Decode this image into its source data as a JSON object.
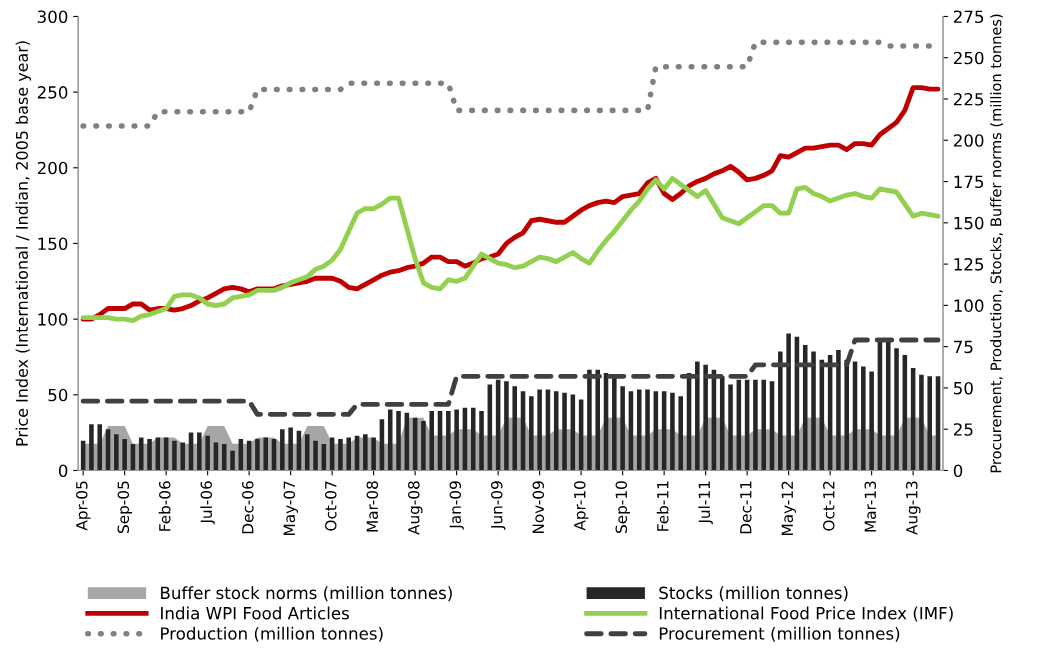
{
  "chart_data": {
    "type": "bar",
    "ylabel": "Price Index (International / Indian, 2005 base year)",
    "y2label": "Procurement, Production, Stocks, Buffer norms (million tonnes)",
    "categories": [
      "Apr-05",
      null,
      null,
      null,
      null,
      "Sep-05",
      null,
      null,
      null,
      null,
      "Feb-06",
      null,
      null,
      null,
      null,
      "Jul-06",
      null,
      null,
      null,
      null,
      "Dec-06",
      null,
      null,
      null,
      null,
      "May-07",
      null,
      null,
      null,
      null,
      "Oct-07",
      null,
      null,
      null,
      null,
      "Mar-08",
      null,
      null,
      null,
      null,
      "Aug-08",
      null,
      null,
      null,
      null,
      "Jan-09",
      null,
      null,
      null,
      null,
      "Jun-09",
      null,
      null,
      null,
      null,
      "Nov-09",
      null,
      null,
      null,
      null,
      "Apr-10",
      null,
      null,
      null,
      null,
      "Sep-10",
      null,
      null,
      null,
      null,
      "Feb-11",
      null,
      null,
      null,
      null,
      "Jul-11",
      null,
      null,
      null,
      null,
      "Dec-11",
      null,
      null,
      null,
      null,
      "May-12",
      null,
      null,
      null,
      null,
      "Oct-12",
      null,
      null,
      null,
      null,
      "Mar-13",
      null,
      null,
      null,
      null,
      "Aug-13",
      null,
      null,
      null
    ],
    "ylim": [
      0,
      300
    ],
    "yticks": [
      0,
      50,
      100,
      150,
      200,
      250,
      300
    ],
    "y2lim": [
      0,
      275
    ],
    "y2ticks": [
      0,
      25,
      50,
      75,
      100,
      125,
      150,
      175,
      200,
      225,
      250,
      275
    ],
    "legend": "bottom",
    "grid": false,
    "series": [
      {
        "name": "Buffer stock norms (million tonnes)",
        "type": "area",
        "axis": "y2",
        "color": "#a6a6a6",
        "values": [
          16.2,
          16.2,
          16.2,
          26.9,
          26.9,
          26.9,
          16.2,
          16.2,
          16.2,
          20,
          20,
          20,
          16.2,
          16.2,
          16.2,
          26.9,
          26.9,
          26.9,
          16.2,
          16.2,
          16.2,
          20,
          20,
          20,
          16.2,
          16.2,
          16.2,
          26.9,
          26.9,
          26.9,
          16.2,
          16.2,
          16.2,
          20,
          20,
          20,
          16.2,
          16.2,
          16.2,
          31.9,
          31.9,
          31.9,
          21.2,
          21.2,
          21.2,
          25,
          25,
          25,
          21.2,
          21.2,
          21.2,
          31.9,
          31.9,
          31.9,
          21.2,
          21.2,
          21.2,
          25,
          25,
          25,
          21.2,
          21.2,
          21.2,
          31.9,
          31.9,
          31.9,
          21.2,
          21.2,
          21.2,
          25,
          25,
          25,
          21.2,
          21.2,
          21.2,
          31.9,
          31.9,
          31.9,
          21.2,
          21.2,
          21.2,
          25,
          25,
          25,
          21.2,
          21.2,
          21.2,
          31.9,
          31.9,
          31.9,
          21.2,
          21.2,
          21.2,
          25,
          25,
          25,
          21.2,
          21.2,
          21.2,
          31.9,
          31.9,
          31.9,
          21.2,
          21.2
        ]
      },
      {
        "name": "Stocks (million tonnes)",
        "axis": "y2",
        "color": "#262626",
        "values": [
          18,
          28,
          28,
          25,
          22,
          19,
          16,
          20,
          19,
          20,
          20,
          18,
          17,
          23,
          23,
          21,
          17,
          16,
          12,
          19,
          18,
          19,
          20,
          19,
          25,
          26,
          24,
          22,
          18,
          16,
          20,
          19,
          20,
          21,
          22,
          20,
          31,
          37,
          36,
          35,
          32,
          30,
          36,
          36,
          36,
          37,
          38,
          38,
          36,
          52,
          55,
          54,
          51,
          48,
          45,
          49,
          49,
          48,
          47,
          46,
          43,
          61,
          61,
          59,
          56,
          51,
          48,
          49,
          49,
          48,
          48,
          47,
          45,
          59,
          66,
          64,
          61,
          57,
          52,
          55,
          55,
          55,
          55,
          54,
          72,
          83,
          81,
          76,
          72,
          67,
          70,
          73,
          67,
          66,
          63,
          60,
          78,
          78,
          74,
          70,
          62,
          58,
          57,
          57
        ]
      },
      {
        "name": "India WPI Food Articles",
        "type": "line",
        "axis": "y",
        "color": "#c00000",
        "line_style": "solid",
        "values": [
          100,
          100,
          103,
          107,
          107,
          107,
          110,
          110,
          106,
          107,
          107,
          106,
          107,
          109,
          112,
          114,
          117,
          120,
          121,
          120,
          118,
          120,
          120,
          120,
          122,
          123,
          124,
          125,
          127,
          127,
          127,
          125,
          121,
          120,
          123,
          126,
          129,
          131,
          132,
          134,
          135,
          137,
          141,
          141,
          138,
          138,
          135,
          137,
          140,
          141,
          143,
          150,
          154,
          157,
          165,
          166,
          165,
          164,
          164,
          168,
          172,
          175,
          177,
          178,
          177,
          181,
          182,
          183,
          190,
          193,
          183,
          179,
          183,
          188,
          191,
          193,
          196,
          198,
          201,
          197,
          192,
          193,
          195,
          198,
          208,
          207,
          210,
          213,
          213,
          214,
          215,
          215,
          212,
          216,
          216,
          215,
          222,
          226,
          230,
          238,
          253,
          253,
          252,
          252
        ]
      },
      {
        "name": "International Food Price Index (IMF)",
        "type": "line",
        "axis": "y",
        "color": "#92d050",
        "line_style": "solid",
        "values": [
          101,
          101,
          101,
          101,
          100,
          100,
          99,
          102,
          103,
          105,
          107,
          115,
          116,
          116,
          114,
          110,
          109,
          110,
          114,
          115,
          116,
          119,
          119,
          119,
          121,
          124,
          126,
          128,
          133,
          135,
          139,
          146,
          158,
          170,
          173,
          173,
          176,
          180,
          180,
          160,
          140,
          124,
          121,
          120,
          126,
          125,
          127,
          135,
          143,
          140,
          137,
          136,
          134,
          135,
          138,
          141,
          140,
          138,
          141,
          144,
          140,
          137,
          145,
          152,
          158,
          165,
          172,
          178,
          186,
          192,
          186,
          193,
          189,
          185,
          181,
          185,
          176,
          167,
          165,
          163,
          167,
          171,
          175,
          175,
          170,
          170,
          186,
          187,
          183,
          181,
          178,
          180,
          182,
          183,
          181,
          180,
          186,
          185,
          184,
          176,
          168,
          170,
          169,
          168
        ]
      },
      {
        "name": "Production (million tonnes)",
        "type": "line",
        "axis": "y2",
        "color": "#808080",
        "line_style": "dotted",
        "values": [
          208.6,
          208.6,
          208.6,
          208.6,
          208.6,
          208.6,
          208.6,
          208.6,
          208.6,
          217.3,
          217.3,
          217.3,
          217.3,
          217.3,
          217.3,
          217.3,
          217.3,
          217.3,
          217.3,
          217.3,
          217.3,
          230.8,
          230.8,
          230.8,
          230.8,
          230.8,
          230.8,
          230.8,
          230.8,
          230.8,
          230.8,
          230.8,
          234.5,
          234.5,
          234.5,
          234.5,
          234.5,
          234.5,
          234.5,
          234.5,
          234.5,
          234.5,
          234.5,
          234.5,
          234.5,
          218.1,
          218.1,
          218.1,
          218.1,
          218.1,
          218.1,
          218.1,
          218.1,
          218.1,
          218.1,
          218.1,
          218.1,
          218.1,
          218.1,
          218.1,
          218.1,
          218.1,
          218.1,
          218.1,
          218.1,
          218.1,
          218.1,
          218.1,
          218.1,
          244.5,
          244.5,
          244.5,
          244.5,
          244.5,
          244.5,
          244.5,
          244.5,
          244.5,
          244.5,
          244.5,
          244.5,
          259.3,
          259.3,
          259.3,
          259.3,
          259.3,
          259.3,
          259.3,
          259.3,
          259.3,
          259.3,
          259.3,
          259.3,
          259.3,
          259.3,
          259.3,
          259.3,
          257.1,
          257.1,
          257.1,
          257.1,
          257.1,
          257.1,
          257.1
        ]
      },
      {
        "name": "Procurement (million tonnes)",
        "type": "line",
        "axis": "y2",
        "color": "#404040",
        "line_style": "dashed",
        "values": [
          42,
          42,
          42,
          42,
          42,
          42,
          42,
          42,
          42,
          42,
          42,
          42,
          42,
          42,
          42,
          42,
          42,
          42,
          42,
          42,
          42,
          34,
          34,
          34,
          34,
          34,
          34,
          34,
          34,
          34,
          34,
          34,
          34,
          40,
          40,
          40,
          40,
          40,
          40,
          40,
          40,
          40,
          40,
          40,
          40,
          57,
          57,
          57,
          57,
          57,
          57,
          57,
          57,
          57,
          57,
          57,
          57,
          57,
          57,
          57,
          57,
          57,
          57,
          57,
          57,
          57,
          57,
          57,
          57,
          57,
          57,
          57,
          57,
          57,
          57,
          57,
          57,
          57,
          57,
          57,
          57,
          64,
          64,
          64,
          64,
          64,
          64,
          64,
          64,
          64,
          64,
          64,
          64,
          79,
          79,
          79,
          79,
          79,
          79,
          79,
          79,
          79,
          79,
          79
        ]
      }
    ]
  }
}
